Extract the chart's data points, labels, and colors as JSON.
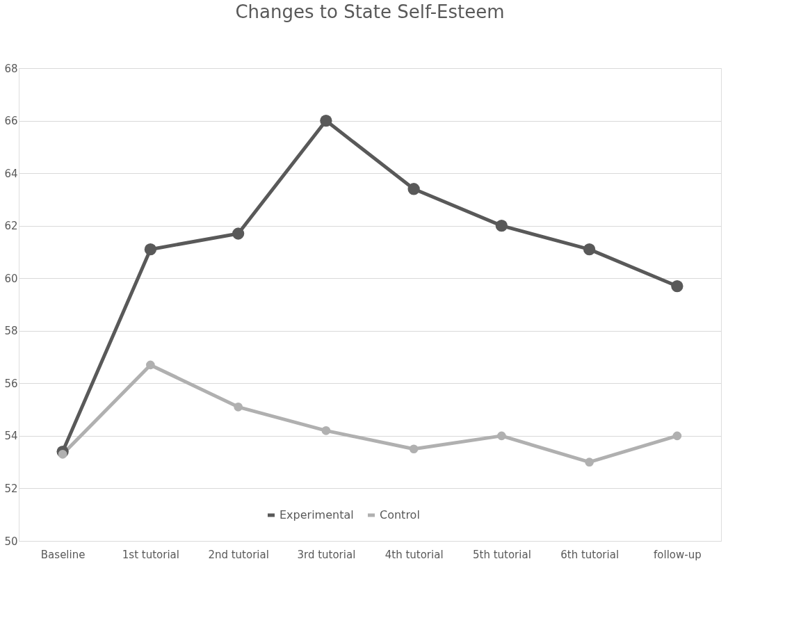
{
  "chart_data": {
    "type": "line",
    "title": "Changes to State Self-Esteem",
    "categories": [
      "Baseline",
      "1st tutorial",
      "2nd tutorial",
      "3rd tutorial",
      "4th tutorial",
      "5th tutorial",
      "6th tutorial",
      "follow-up"
    ],
    "series": [
      {
        "name": "Experimental",
        "color": "#595959",
        "values": [
          53.4,
          61.1,
          61.7,
          66.0,
          63.4,
          62.0,
          61.1,
          59.7
        ]
      },
      {
        "name": "Control",
        "color": "#b0b0b0",
        "values": [
          53.3,
          56.7,
          55.1,
          54.2,
          53.5,
          54.0,
          53.0,
          54.0
        ]
      }
    ],
    "ylim": [
      50,
      68
    ],
    "yticks": [
      50,
      52,
      54,
      56,
      58,
      60,
      62,
      64,
      66,
      68
    ],
    "grid": "y",
    "legend": "bottom",
    "marker": "circle",
    "line_style": "solid"
  }
}
